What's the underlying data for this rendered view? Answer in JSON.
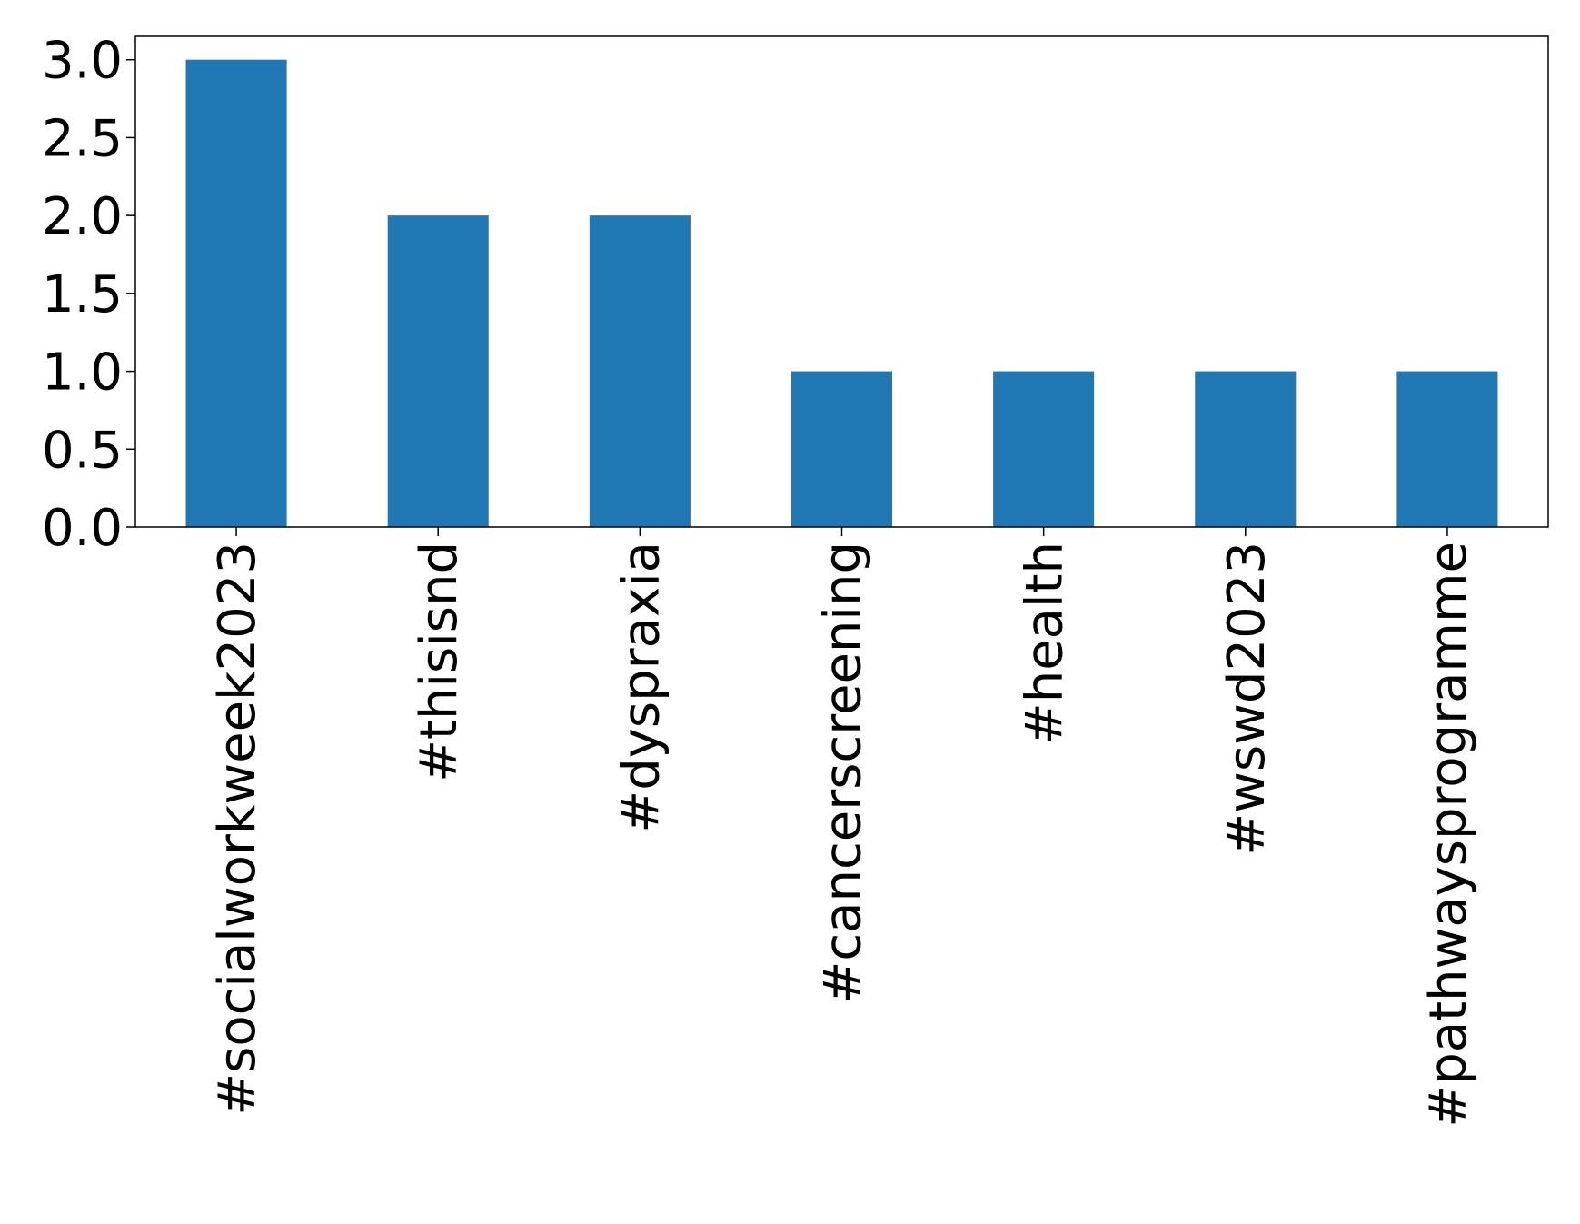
{
  "chart_data": {
    "type": "bar",
    "categories": [
      "#socialworkweek2023",
      "#thisisnd",
      "#dyspraxia",
      "#cancerscreening",
      "#health",
      "#wswd2023",
      "#pathwaysprogramme"
    ],
    "values": [
      3,
      2,
      2,
      1,
      1,
      1,
      1
    ],
    "yticks": [
      "0.0",
      "0.5",
      "1.0",
      "1.5",
      "2.0",
      "2.5",
      "3.0"
    ],
    "ylim": [
      0,
      3.15
    ],
    "title": "",
    "xlabel": "",
    "ylabel": "",
    "grid": false,
    "bar_color": "#1f77b4",
    "axis_color": "#000000"
  }
}
